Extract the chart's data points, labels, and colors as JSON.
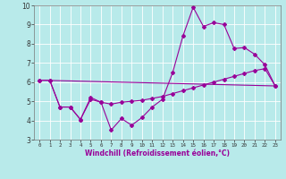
{
  "xlabel": "Windchill (Refroidissement éolien,°C)",
  "bg_color": "#b8eaea",
  "line_color": "#990099",
  "grid_color": "#ffffff",
  "xlim": [
    -0.5,
    23.5
  ],
  "ylim": [
    3,
    10
  ],
  "yticks": [
    3,
    4,
    5,
    6,
    7,
    8,
    9,
    10
  ],
  "xticks": [
    0,
    1,
    2,
    3,
    4,
    5,
    6,
    7,
    8,
    9,
    10,
    11,
    12,
    13,
    14,
    15,
    16,
    17,
    18,
    19,
    20,
    21,
    22,
    23
  ],
  "line1_x": [
    0,
    1,
    2,
    3,
    4,
    5,
    6,
    7,
    8,
    9,
    10,
    11,
    12,
    13,
    14,
    15,
    16,
    17,
    18,
    19,
    20,
    21,
    22,
    23
  ],
  "line1_y": [
    6.1,
    6.1,
    4.7,
    4.7,
    4.05,
    5.2,
    4.95,
    3.5,
    4.1,
    3.75,
    4.15,
    4.7,
    5.1,
    6.5,
    8.4,
    9.9,
    8.9,
    9.1,
    9.0,
    7.75,
    7.8,
    7.45,
    6.9,
    5.8
  ],
  "line2_x": [
    0,
    1,
    2,
    3,
    4,
    5,
    6,
    7,
    8,
    9,
    10,
    11,
    12,
    13,
    14,
    15,
    16,
    17,
    18,
    19,
    20,
    21,
    22,
    23
  ],
  "line2_y": [
    6.1,
    6.1,
    4.7,
    4.7,
    4.05,
    5.1,
    4.95,
    4.85,
    4.95,
    5.0,
    5.05,
    5.15,
    5.25,
    5.4,
    5.55,
    5.7,
    5.85,
    6.0,
    6.15,
    6.3,
    6.45,
    6.6,
    6.7,
    5.8
  ],
  "line3_x": [
    0,
    23
  ],
  "line3_y": [
    6.1,
    5.8
  ]
}
